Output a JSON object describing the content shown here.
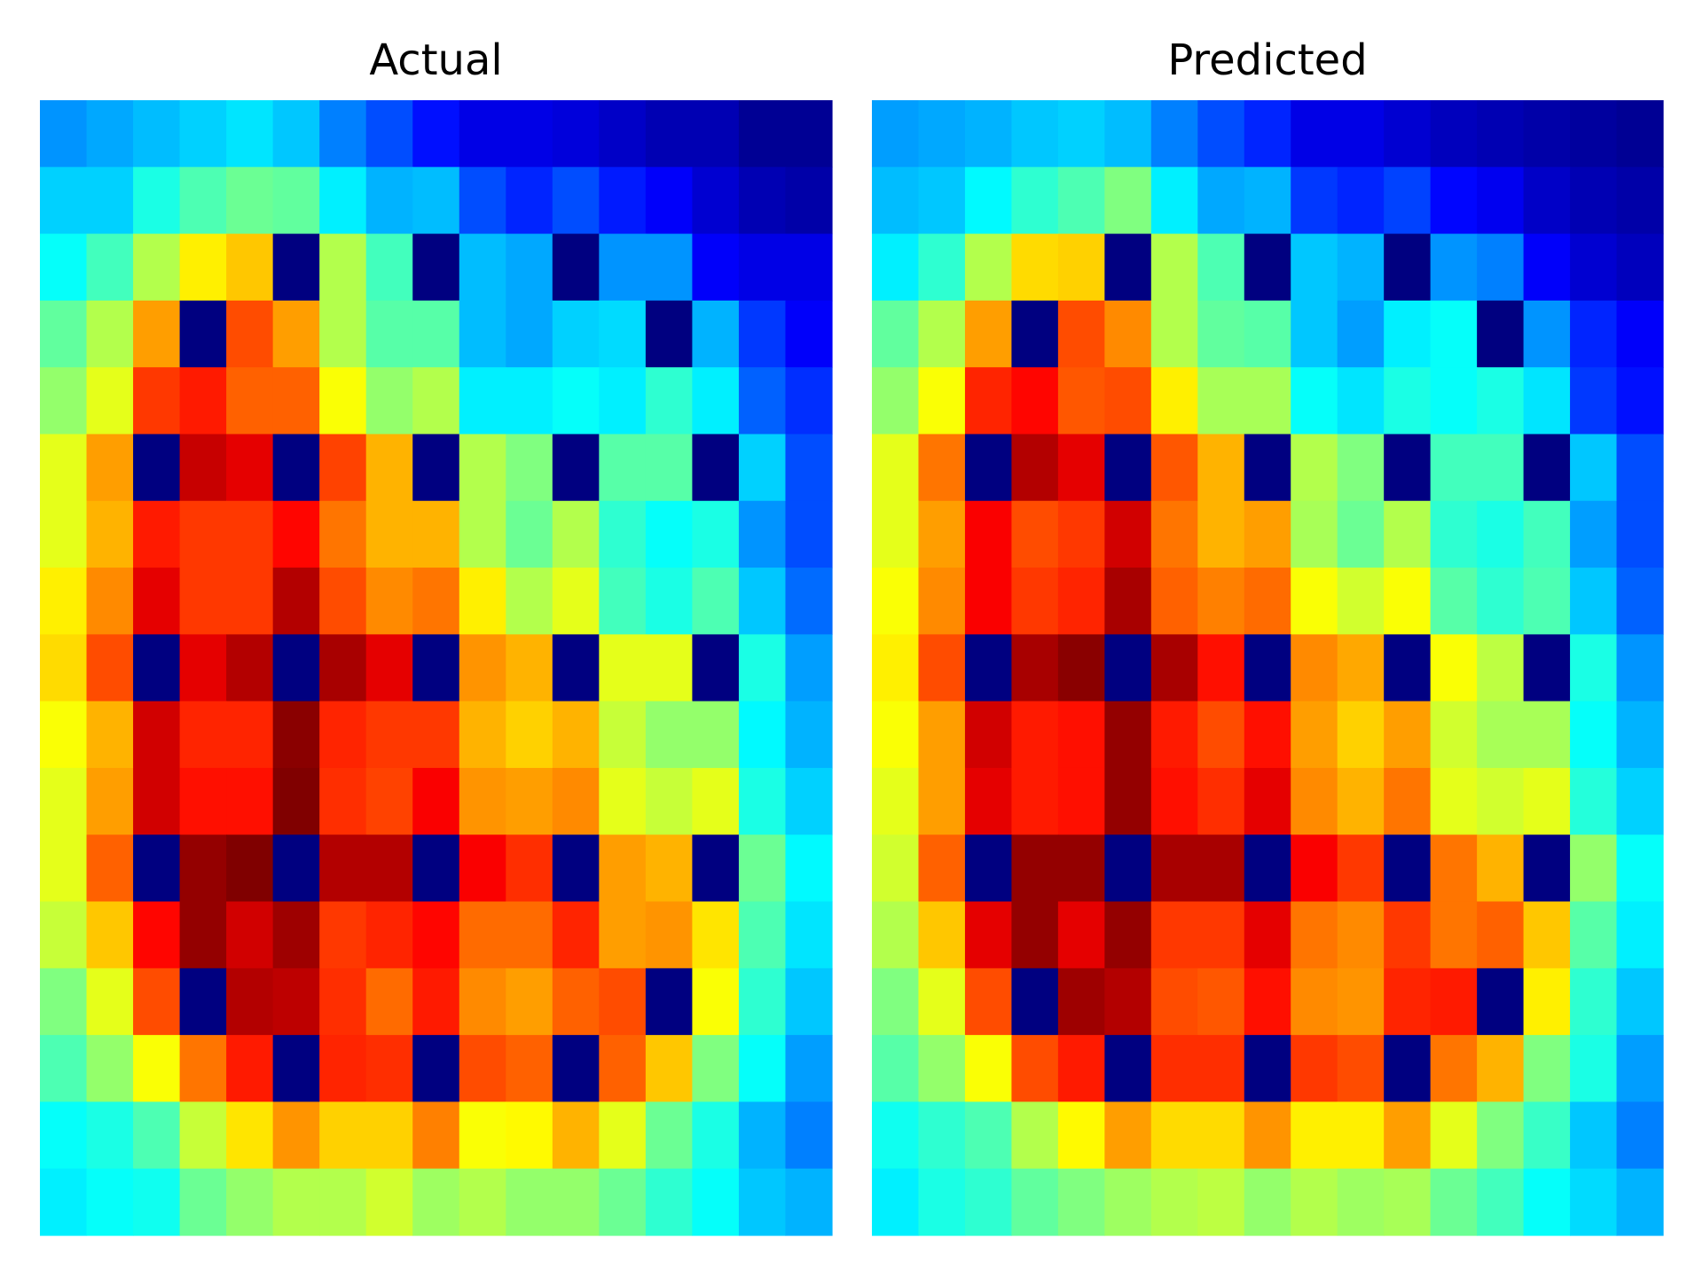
{
  "chart_data": [
    {
      "type": "heatmap",
      "title": "Actual",
      "colormap": "jet",
      "values": [
        [
          0.27,
          0.29,
          0.31,
          0.33,
          0.35,
          0.32,
          0.25,
          0.2,
          0.14,
          0.1,
          0.1,
          0.09,
          0.07,
          0.05,
          0.05,
          0.02,
          0.02
        ],
        [
          0.33,
          0.33,
          0.4,
          0.45,
          0.48,
          0.47,
          0.36,
          0.3,
          0.31,
          0.2,
          0.16,
          0.2,
          0.15,
          0.12,
          0.08,
          0.05,
          0.04
        ],
        [
          0.38,
          0.44,
          0.55,
          0.64,
          0.68,
          0,
          0.55,
          0.44,
          0,
          0.31,
          0.29,
          0,
          0.27,
          0.27,
          0.12,
          0.1,
          0.1
        ],
        [
          0.47,
          0.55,
          0.72,
          0,
          0.8,
          0.72,
          0.55,
          0.46,
          0.46,
          0.31,
          0.29,
          0.33,
          0.34,
          0,
          0.3,
          0.18,
          0.12
        ],
        [
          0.52,
          0.6,
          0.82,
          0.85,
          0.78,
          0.78,
          0.62,
          0.52,
          0.55,
          0.36,
          0.36,
          0.38,
          0.36,
          0.42,
          0.36,
          0.22,
          0.17
        ],
        [
          0.6,
          0.72,
          0,
          0.93,
          0.9,
          0,
          0.81,
          0.7,
          0,
          0.55,
          0.5,
          0,
          0.46,
          0.46,
          0,
          0.33,
          0.2
        ],
        [
          0.6,
          0.7,
          0.85,
          0.82,
          0.82,
          0.87,
          0.76,
          0.7,
          0.7,
          0.55,
          0.48,
          0.55,
          0.42,
          0.38,
          0.4,
          0.27,
          0.2
        ],
        [
          0.64,
          0.74,
          0.9,
          0.82,
          0.82,
          0.95,
          0.8,
          0.74,
          0.76,
          0.64,
          0.55,
          0.6,
          0.44,
          0.4,
          0.45,
          0.32,
          0.23
        ],
        [
          0.66,
          0.8,
          0,
          0.9,
          0.95,
          0,
          0.96,
          0.9,
          0,
          0.73,
          0.7,
          0,
          0.6,
          0.6,
          0,
          0.4,
          0.28
        ],
        [
          0.62,
          0.7,
          0.92,
          0.84,
          0.84,
          0.99,
          0.84,
          0.82,
          0.82,
          0.7,
          0.67,
          0.7,
          0.57,
          0.52,
          0.52,
          0.37,
          0.3
        ],
        [
          0.6,
          0.72,
          0.92,
          0.86,
          0.86,
          1.0,
          0.83,
          0.81,
          0.88,
          0.73,
          0.72,
          0.74,
          0.6,
          0.57,
          0.6,
          0.4,
          0.33
        ],
        [
          0.6,
          0.78,
          0,
          0.98,
          1.0,
          0,
          0.95,
          0.95,
          0,
          0.88,
          0.83,
          0,
          0.72,
          0.7,
          0,
          0.48,
          0.37
        ],
        [
          0.57,
          0.68,
          0.87,
          0.98,
          0.92,
          0.97,
          0.82,
          0.84,
          0.87,
          0.77,
          0.77,
          0.84,
          0.72,
          0.73,
          0.65,
          0.45,
          0.35
        ],
        [
          0.5,
          0.6,
          0.8,
          0,
          0.95,
          0.94,
          0.83,
          0.77,
          0.85,
          0.74,
          0.72,
          0.78,
          0.8,
          0,
          0.62,
          0.42,
          0.32
        ],
        [
          0.45,
          0.52,
          0.62,
          0.76,
          0.85,
          0,
          0.84,
          0.83,
          0,
          0.8,
          0.78,
          0,
          0.78,
          0.68,
          0.5,
          0.38,
          0.28
        ],
        [
          0.38,
          0.4,
          0.45,
          0.57,
          0.65,
          0.73,
          0.67,
          0.67,
          0.75,
          0.62,
          0.63,
          0.7,
          0.6,
          0.48,
          0.4,
          0.3,
          0.25
        ],
        [
          0.36,
          0.38,
          0.39,
          0.48,
          0.52,
          0.55,
          0.55,
          0.58,
          0.53,
          0.55,
          0.52,
          0.52,
          0.48,
          0.42,
          0.38,
          0.32,
          0.3
        ]
      ]
    },
    {
      "type": "heatmap",
      "title": "Predicted",
      "colormap": "jet",
      "values": [
        [
          0.28,
          0.29,
          0.3,
          0.32,
          0.33,
          0.31,
          0.25,
          0.2,
          0.16,
          0.1,
          0.1,
          0.08,
          0.06,
          0.05,
          0.04,
          0.03,
          0.02
        ],
        [
          0.31,
          0.32,
          0.37,
          0.42,
          0.45,
          0.5,
          0.36,
          0.29,
          0.3,
          0.18,
          0.16,
          0.19,
          0.13,
          0.11,
          0.07,
          0.05,
          0.04
        ],
        [
          0.36,
          0.42,
          0.55,
          0.66,
          0.67,
          0,
          0.55,
          0.45,
          0,
          0.32,
          0.3,
          0,
          0.27,
          0.25,
          0.12,
          0.08,
          0.06
        ],
        [
          0.47,
          0.55,
          0.72,
          0,
          0.8,
          0.74,
          0.55,
          0.47,
          0.46,
          0.32,
          0.28,
          0.36,
          0.38,
          0,
          0.27,
          0.16,
          0.12
        ],
        [
          0.52,
          0.62,
          0.84,
          0.87,
          0.79,
          0.8,
          0.64,
          0.54,
          0.54,
          0.38,
          0.35,
          0.4,
          0.38,
          0.4,
          0.35,
          0.18,
          0.14
        ],
        [
          0.6,
          0.76,
          0,
          0.95,
          0.9,
          0,
          0.79,
          0.7,
          0,
          0.55,
          0.5,
          0,
          0.44,
          0.44,
          0,
          0.32,
          0.2
        ],
        [
          0.6,
          0.72,
          0.88,
          0.8,
          0.82,
          0.92,
          0.76,
          0.7,
          0.72,
          0.54,
          0.48,
          0.55,
          0.42,
          0.4,
          0.44,
          0.28,
          0.2
        ],
        [
          0.62,
          0.74,
          0.88,
          0.82,
          0.84,
          0.96,
          0.78,
          0.75,
          0.77,
          0.62,
          0.58,
          0.62,
          0.46,
          0.42,
          0.45,
          0.32,
          0.22
        ],
        [
          0.64,
          0.8,
          0,
          0.96,
          0.99,
          0,
          0.96,
          0.86,
          0,
          0.74,
          0.71,
          0,
          0.62,
          0.56,
          0,
          0.4,
          0.27
        ],
        [
          0.62,
          0.72,
          0.92,
          0.85,
          0.86,
          0.98,
          0.85,
          0.8,
          0.86,
          0.72,
          0.67,
          0.72,
          0.58,
          0.54,
          0.54,
          0.38,
          0.3
        ],
        [
          0.6,
          0.72,
          0.9,
          0.85,
          0.86,
          0.98,
          0.86,
          0.83,
          0.9,
          0.74,
          0.7,
          0.76,
          0.6,
          0.58,
          0.6,
          0.41,
          0.33
        ],
        [
          0.58,
          0.78,
          0,
          0.98,
          0.98,
          0,
          0.96,
          0.96,
          0,
          0.88,
          0.82,
          0,
          0.76,
          0.7,
          0,
          0.52,
          0.38
        ],
        [
          0.55,
          0.68,
          0.9,
          0.98,
          0.9,
          0.98,
          0.82,
          0.82,
          0.9,
          0.76,
          0.74,
          0.82,
          0.76,
          0.78,
          0.68,
          0.46,
          0.36
        ],
        [
          0.5,
          0.6,
          0.8,
          0,
          0.97,
          0.95,
          0.8,
          0.79,
          0.86,
          0.74,
          0.73,
          0.84,
          0.85,
          0,
          0.64,
          0.42,
          0.32
        ],
        [
          0.46,
          0.52,
          0.62,
          0.8,
          0.85,
          0,
          0.83,
          0.83,
          0,
          0.82,
          0.8,
          0,
          0.76,
          0.7,
          0.5,
          0.4,
          0.28
        ],
        [
          0.39,
          0.42,
          0.45,
          0.55,
          0.63,
          0.72,
          0.66,
          0.66,
          0.73,
          0.64,
          0.64,
          0.72,
          0.6,
          0.5,
          0.43,
          0.32,
          0.25
        ],
        [
          0.36,
          0.4,
          0.42,
          0.47,
          0.5,
          0.53,
          0.55,
          0.56,
          0.52,
          0.55,
          0.53,
          0.54,
          0.48,
          0.44,
          0.38,
          0.34,
          0.3
        ]
      ]
    }
  ]
}
